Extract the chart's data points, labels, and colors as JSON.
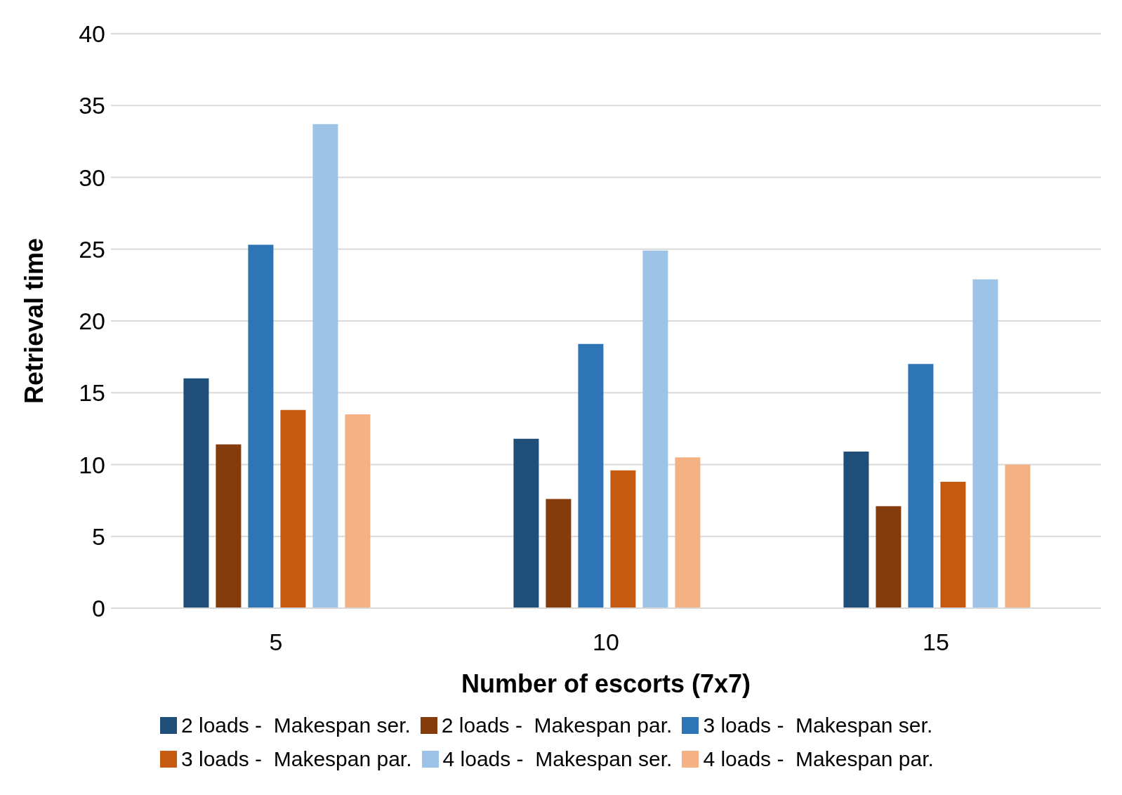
{
  "chart_data": {
    "type": "bar",
    "xlabel": "Number of escorts (7x7)",
    "ylabel": "Retrieval time",
    "categories": [
      "5",
      "10",
      "15"
    ],
    "series": [
      {
        "name": "2 loads -  Makespan ser.",
        "color": "#1f4e79",
        "values": [
          16,
          11.8,
          10.9
        ]
      },
      {
        "name": "2 loads -  Makespan par.",
        "color": "#843c0c",
        "values": [
          11.4,
          7.6,
          7.1
        ]
      },
      {
        "name": "3 loads -  Makespan ser.",
        "color": "#2e75b6",
        "values": [
          25.3,
          18.4,
          17.0
        ]
      },
      {
        "name": "3 loads -  Makespan par.",
        "color": "#c55a11",
        "values": [
          13.8,
          9.6,
          8.8
        ]
      },
      {
        "name": "4 loads -  Makespan ser.",
        "color": "#9dc3e6",
        "values": [
          33.7,
          24.9,
          22.9
        ]
      },
      {
        "name": "4 loads -  Makespan par.",
        "color": "#f4b183",
        "values": [
          13.5,
          10.5,
          10.0
        ]
      }
    ],
    "ylim": [
      0,
      40
    ],
    "yticks": [
      0,
      5,
      10,
      15,
      20,
      25,
      30,
      35,
      40
    ],
    "grid": "y",
    "legend": "bottom"
  }
}
